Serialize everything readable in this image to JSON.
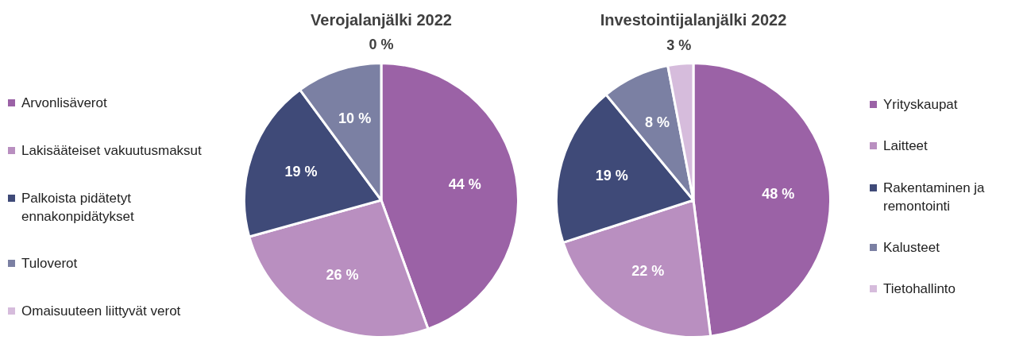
{
  "chart_data": [
    {
      "type": "pie",
      "title": "Verojalanjälki 2022",
      "categories": [
        "Arvonlisäverot",
        "Lakisääteiset vakuutusmaksut",
        "Palkoista pidätetyt ennakonpidätykset",
        "Tuloverot",
        "Omaisuuteen liittyvät verot"
      ],
      "values": [
        44,
        26,
        19,
        10,
        0
      ],
      "colors": [
        "#9b62a6",
        "#b98fc0",
        "#3f4a78",
        "#7b80a3",
        "#d6bcdc"
      ],
      "value_labels": [
        "44 %",
        "26 %",
        "19 %",
        "10 %",
        "0 %"
      ],
      "legend": "left"
    },
    {
      "type": "pie",
      "title": "Investointijalanjälki 2022",
      "categories": [
        "Yrityskaupat",
        "Laitteet",
        "Rakentaminen ja remontointi",
        "Kalusteet",
        "Tietohallinto"
      ],
      "values": [
        48,
        22,
        19,
        8,
        3
      ],
      "colors": [
        "#9b62a6",
        "#b98fc0",
        "#3f4a78",
        "#7b80a3",
        "#d6bcdc"
      ],
      "value_labels": [
        "48 %",
        "22 %",
        "19 %",
        "8 %",
        "3 %"
      ],
      "legend": "right"
    }
  ]
}
